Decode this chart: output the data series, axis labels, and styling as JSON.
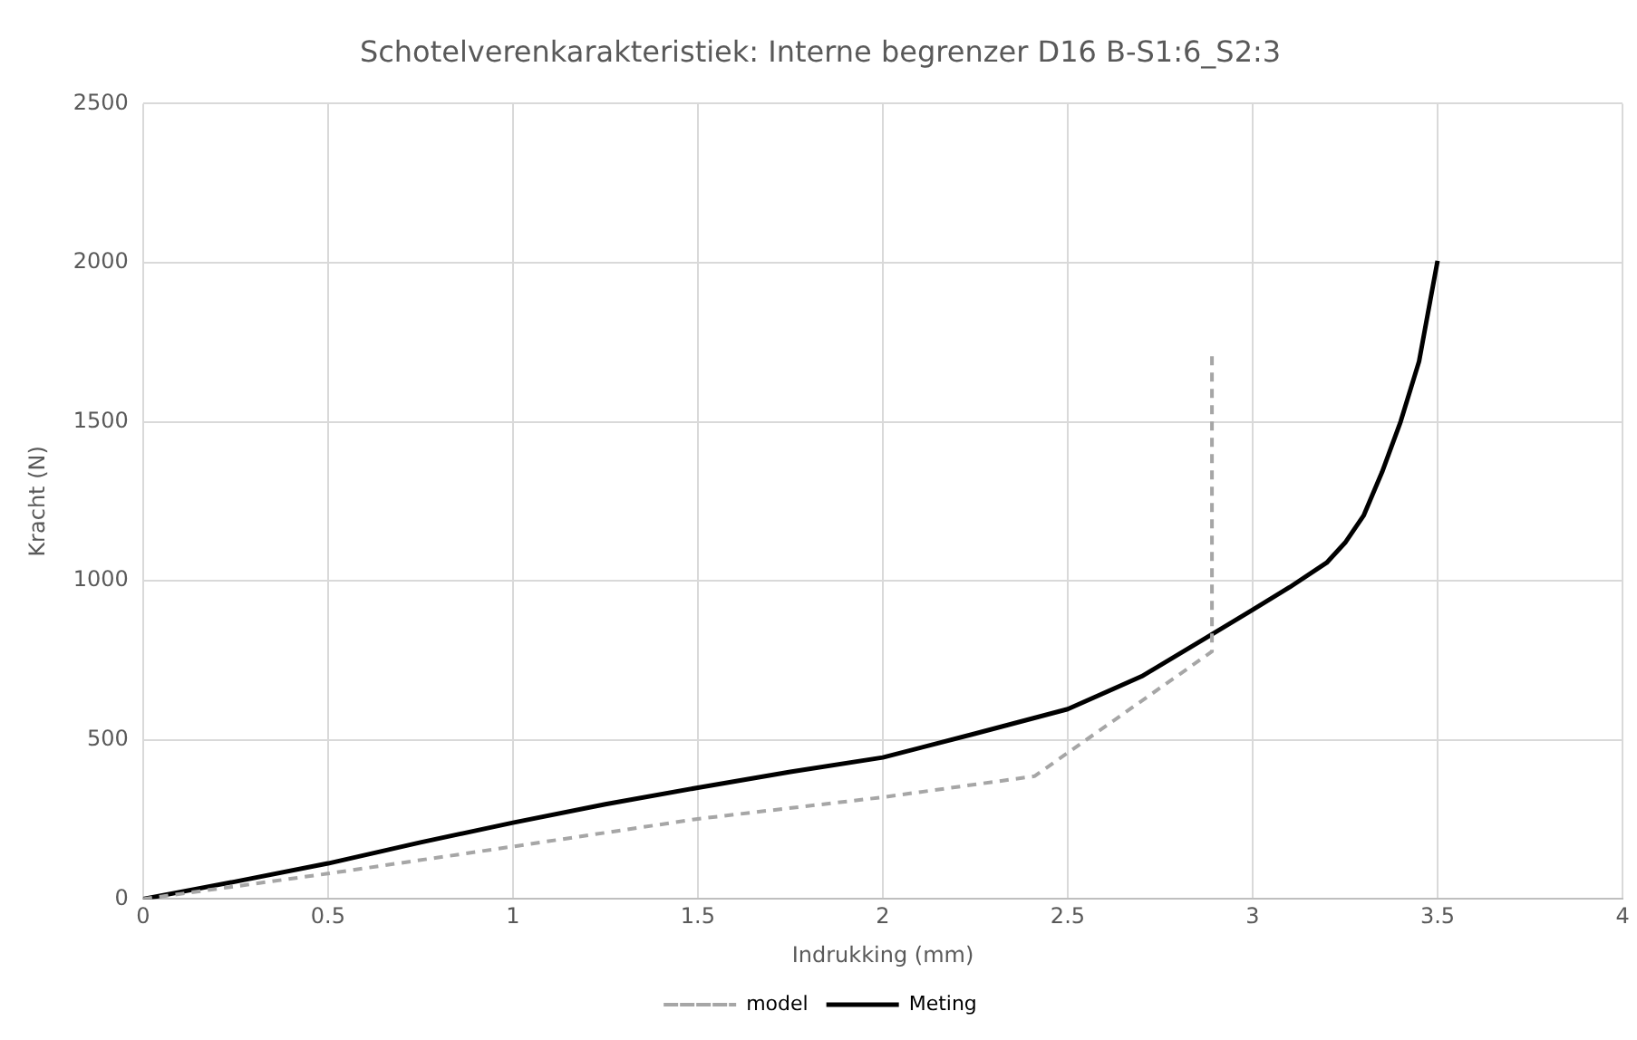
{
  "chart_data": {
    "type": "line",
    "title": "Schotelverenkarakteristiek: Interne begrenzer D16 B-S1:6_S2:3",
    "xlabel": "Indrukking (mm)",
    "ylabel": "Kracht (N)",
    "xlim": [
      0,
      4
    ],
    "xticks": [
      0,
      0.5,
      1,
      1.5,
      2,
      2.5,
      3,
      3.5,
      4
    ],
    "ylim": [
      0,
      2500
    ],
    "yticks": [
      0,
      500,
      1000,
      1500,
      2000,
      2500
    ],
    "grid": true,
    "legend": "bottom",
    "marker": "none",
    "series": [
      {
        "name": "model",
        "color": "#a6a6a6",
        "line_style": "dashed",
        "x": [
          0,
          0.5,
          1,
          1.5,
          2,
          2.41,
          2.89,
          2.89
        ],
        "values": [
          0,
          80,
          165,
          252,
          320,
          386,
          778,
          1710
        ]
      },
      {
        "name": "Meting",
        "color": "#000000",
        "line_style": "solid",
        "x": [
          0,
          0.25,
          0.5,
          0.75,
          1,
          1.25,
          1.5,
          1.75,
          2,
          2.25,
          2.5,
          2.7,
          2.88,
          3,
          3.1,
          3.2,
          3.25,
          3.3,
          3.35,
          3.4,
          3.45,
          3.48,
          3.5
        ],
        "values": [
          0,
          55,
          112,
          178,
          240,
          298,
          350,
          400,
          445,
          520,
          597,
          700,
          825,
          909,
          980,
          1057,
          1120,
          1205,
          1342,
          1500,
          1690,
          1880,
          2006
        ]
      }
    ]
  }
}
